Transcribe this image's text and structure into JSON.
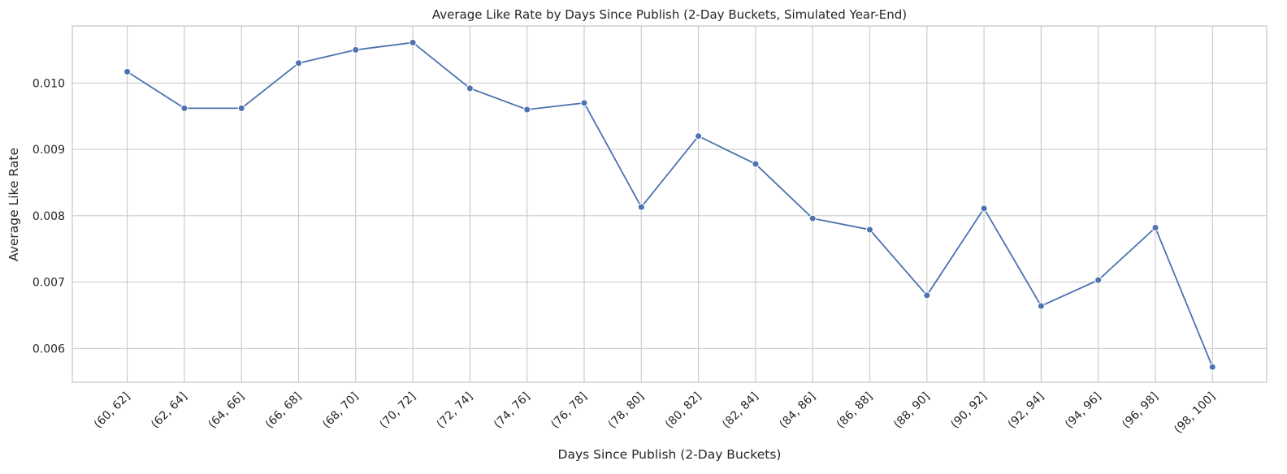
{
  "chart_data": {
    "type": "line",
    "title": "Average Like Rate by Days Since Publish (2-Day Buckets, Simulated Year-End)",
    "xlabel": "Days Since Publish (2-Day Buckets)",
    "ylabel": "Average Like Rate",
    "categories": [
      "(60, 62]",
      "(62, 64]",
      "(64, 66]",
      "(66, 68]",
      "(68, 70]",
      "(70, 72]",
      "(72, 74]",
      "(74, 76]",
      "(76, 78]",
      "(78, 80]",
      "(80, 82]",
      "(82, 84]",
      "(84, 86]",
      "(86, 88]",
      "(88, 90]",
      "(90, 92]",
      "(92, 94]",
      "(94, 96]",
      "(96, 98]",
      "(98, 100]"
    ],
    "values": [
      0.01017,
      0.00962,
      0.00962,
      0.0103,
      0.0105,
      0.01061,
      0.00992,
      0.0096,
      0.0097,
      0.00813,
      0.0092,
      0.00878,
      0.00796,
      0.00779,
      0.0068,
      0.00811,
      0.00664,
      0.00703,
      0.00782,
      0.00572
    ],
    "ylim": [
      0.00549,
      0.01086
    ],
    "yticks": [
      0.006,
      0.007,
      0.008,
      0.009,
      0.01
    ],
    "ytick_labels": [
      "0.006",
      "0.007",
      "0.008",
      "0.009",
      "0.010"
    ],
    "grid": true,
    "legend": "none",
    "markers": true,
    "colors": {
      "series": "#4c72b0",
      "grid": "#cccccc",
      "text": "#262626"
    }
  }
}
